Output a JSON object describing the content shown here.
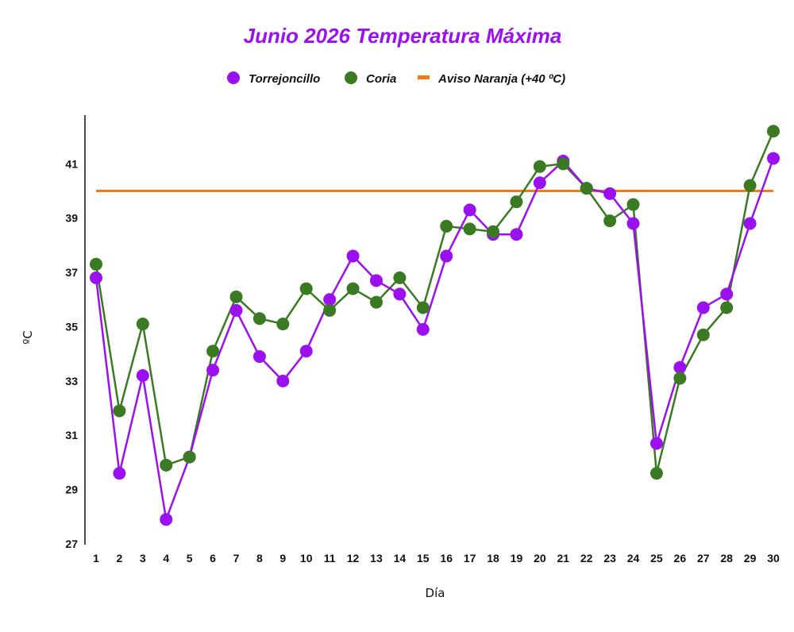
{
  "chart_data": {
    "type": "line",
    "title": "Junio 2026 Temperatura Máxima",
    "xlabel": "Día",
    "ylabel": "ºC",
    "categories": [
      "1",
      "2",
      "3",
      "4",
      "5",
      "6",
      "7",
      "8",
      "9",
      "10",
      "11",
      "12",
      "13",
      "14",
      "15",
      "16",
      "17",
      "18",
      "19",
      "20",
      "21",
      "22",
      "23",
      "24",
      "25",
      "26",
      "27",
      "28",
      "29",
      "30"
    ],
    "ylim": [
      27,
      42.5
    ],
    "yticks": [
      "27",
      "29",
      "31",
      "33",
      "35",
      "37",
      "39",
      "41"
    ],
    "grid": false,
    "legend_position": "top",
    "series": [
      {
        "name": "Torrejoncillo",
        "color": "#9b10ee",
        "values": [
          36.8,
          29.6,
          33.2,
          27.9,
          30.2,
          33.4,
          35.6,
          33.9,
          33.0,
          34.1,
          36.0,
          37.6,
          36.7,
          36.2,
          34.9,
          37.6,
          39.3,
          38.4,
          38.4,
          40.3,
          41.1,
          40.1,
          39.9,
          38.8,
          30.7,
          33.5,
          35.7,
          36.2,
          38.8,
          41.2
        ]
      },
      {
        "name": "Coria",
        "color": "#3a7a22",
        "values": [
          37.3,
          31.9,
          35.1,
          29.9,
          30.2,
          34.1,
          36.1,
          35.3,
          35.1,
          36.4,
          35.6,
          36.4,
          35.9,
          36.8,
          35.7,
          38.7,
          38.6,
          38.5,
          39.6,
          40.9,
          41.0,
          40.1,
          38.9,
          39.5,
          29.6,
          33.1,
          34.7,
          35.7,
          40.2,
          42.2
        ]
      }
    ],
    "threshold": {
      "name": "Aviso Naranja (+40 ºC)",
      "value": 40,
      "color": "#f07a14"
    },
    "title_color": "#9b10ee"
  }
}
